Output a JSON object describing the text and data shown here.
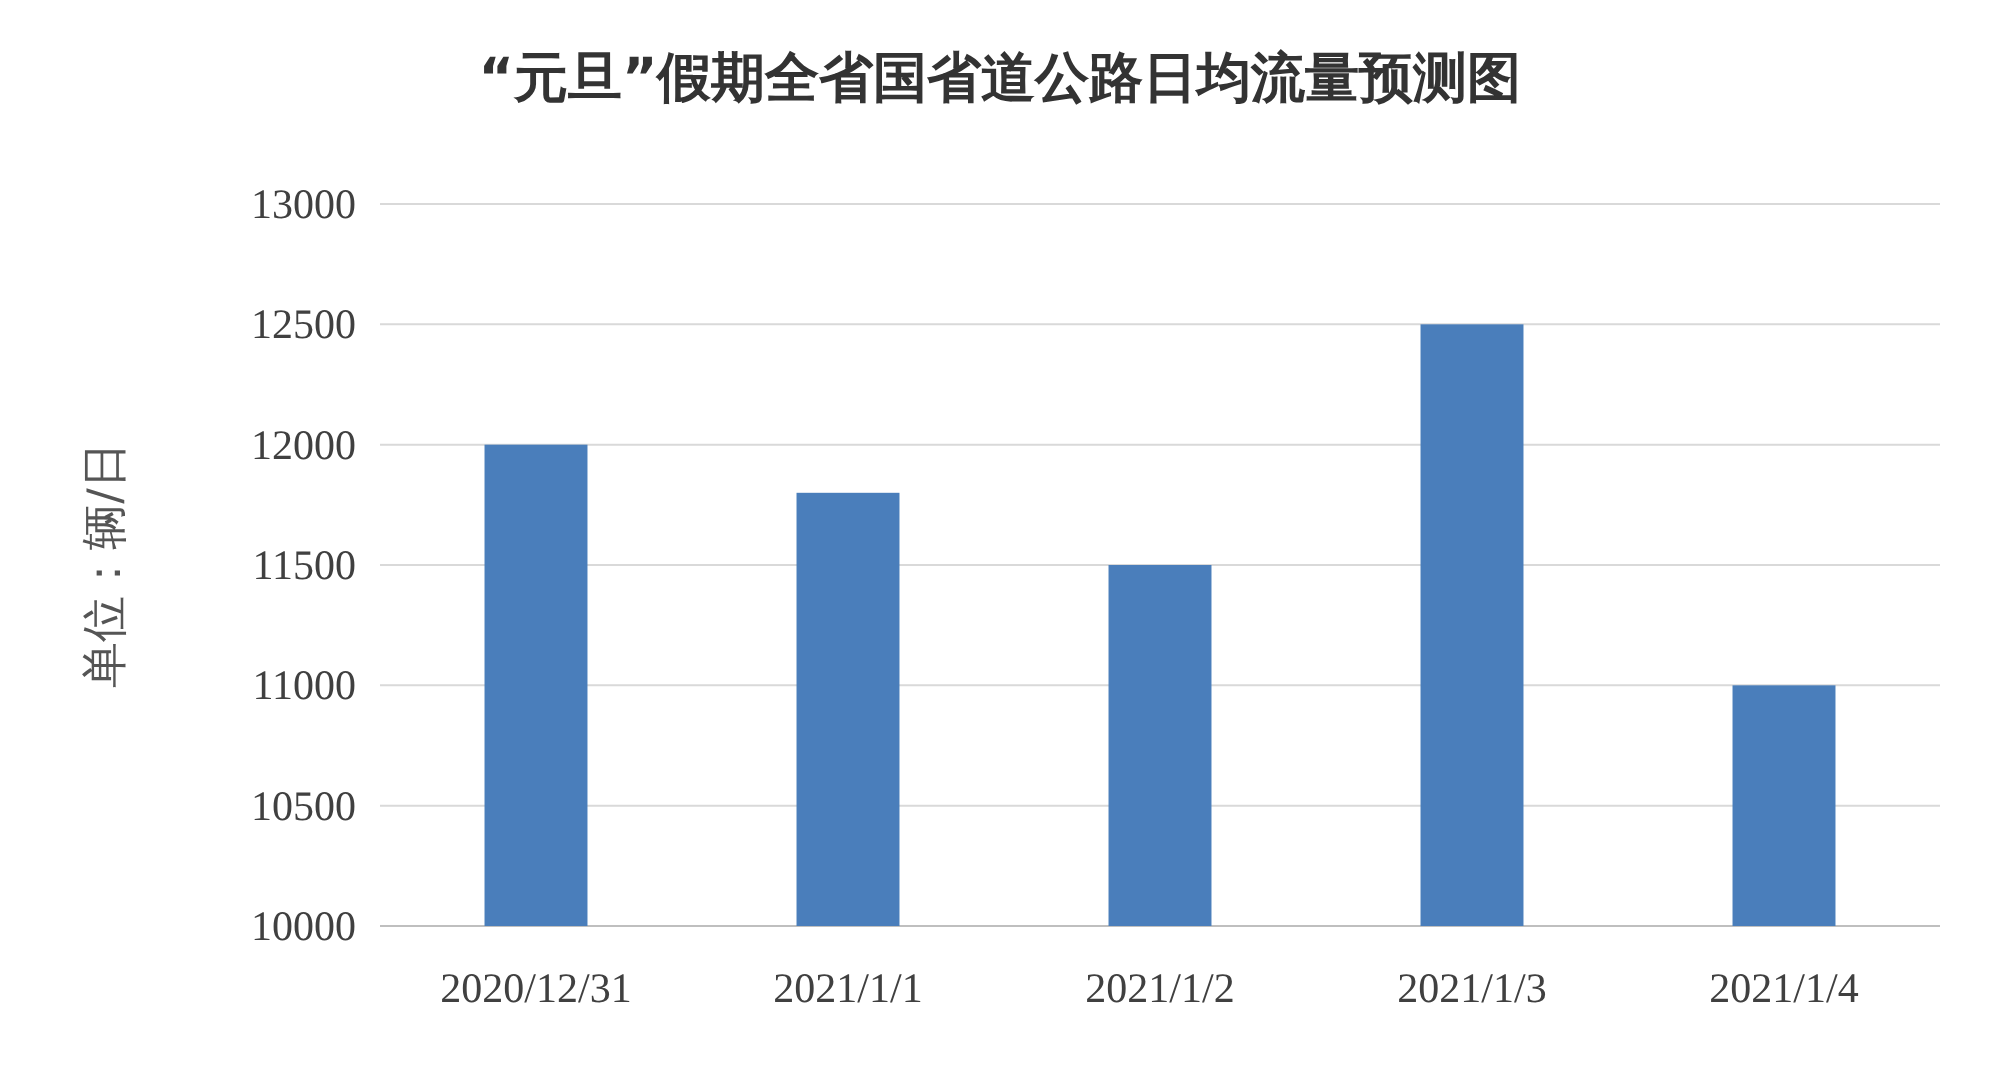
{
  "chart_data": {
    "type": "bar",
    "title": "“元旦”假期全省国省道公路日均流量预测图",
    "ylabel": "单位：辆/日",
    "categories": [
      "2020/12/31",
      "2021/1/1",
      "2021/1/2",
      "2021/1/3",
      "2021/1/4"
    ],
    "values": [
      12000,
      11800,
      11500,
      12500,
      11000
    ],
    "color": "#4a7ebb",
    "ylim": [
      10000,
      13000
    ],
    "yticks": [
      10000,
      10500,
      11000,
      11500,
      12000,
      12500,
      13000
    ],
    "grid": "y"
  }
}
